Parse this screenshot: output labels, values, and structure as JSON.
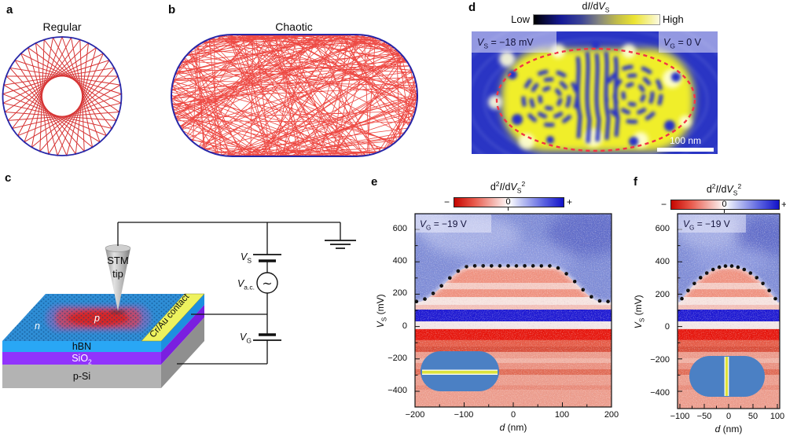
{
  "panels": {
    "a": {
      "label": "a",
      "title": "Regular"
    },
    "b": {
      "label": "b",
      "title": "Chaotic"
    },
    "c": {
      "label": "c",
      "stm1": "STM",
      "stm2": "tip",
      "n": "n",
      "p": "p",
      "hbn": "hBN",
      "sio2": {
        "pre": "SiO",
        "sub": "2"
      },
      "psi": "p-Si",
      "contact": "Cr/Au contact",
      "vs": {
        "pre": "V",
        "sub": "S"
      },
      "vac": {
        "pre": "V",
        "sub": "a.c."
      },
      "vg": {
        "pre": "V",
        "sub": "G"
      },
      "ac_symbol": "∼"
    },
    "d": {
      "label": "d",
      "title": {
        "p1": "d",
        "p2": "I",
        "p3": "/d",
        "p4": "V",
        "sub": "S"
      },
      "low": "Low",
      "high": "High",
      "ann_left": {
        "pre": "V",
        "sub": "S",
        "post": " = −18 mV"
      },
      "ann_right": {
        "pre": "V",
        "sub": "G",
        "post": " = 0 V"
      },
      "scalebar": "100 nm"
    },
    "e": {
      "label": "e",
      "title": {
        "p1": "d",
        "sup1": "2",
        "p2": "I",
        "p3": "/d",
        "p4": "V",
        "sub": "S",
        "sup2": "2"
      },
      "cb": {
        "minus": "−",
        "zero": "0",
        "plus": "+"
      },
      "ann": {
        "pre": "V",
        "sub": "G",
        "post": " = −19 V"
      },
      "yticks": [
        "600",
        "400",
        "200",
        "0",
        "−200",
        "−400"
      ],
      "xticks": [
        "−200",
        "−100",
        "0",
        "100",
        "200"
      ],
      "ylabel": {
        "pre": "V",
        "sub": "S",
        "post": " (mV)"
      },
      "xlabel": {
        "pre": "d",
        "post": " (nm)"
      }
    },
    "f": {
      "label": "f",
      "title": {
        "p1": "d",
        "sup1": "2",
        "p2": "I",
        "p3": "/d",
        "p4": "V",
        "sub": "S",
        "sup2": "2"
      },
      "cb": {
        "minus": "−",
        "zero": "0",
        "plus": "+"
      },
      "ann": {
        "pre": "V",
        "sub": "G",
        "post": " = −19 V"
      },
      "yticks": [
        "600",
        "400",
        "200",
        "0",
        "−200",
        "−400"
      ],
      "xticks": [
        "−100",
        "−50",
        "0",
        "50",
        "100"
      ],
      "ylabel": {
        "pre": "V",
        "sub": "S",
        "post": " (mV)"
      },
      "xlabel": {
        "pre": "d",
        "post": " (nm)"
      }
    }
  },
  "chart_data": [
    {
      "panel": "a",
      "type": "diagram",
      "title": "Regular",
      "description": "Circular billiard (blue outline) filled with regular star-polygon orbit of red chords leaving an empty central caustic disc",
      "geometry": {
        "n_bounces": 41,
        "skip": 16
      }
    },
    {
      "panel": "b",
      "type": "diagram",
      "title": "Chaotic",
      "description": "Stadium billiard (blue outline) densely filled with chaotic red trajectory segments"
    },
    {
      "panel": "d",
      "type": "heatmap",
      "signal": "dI/dVS",
      "colorbar_labels": [
        "Low",
        "High"
      ],
      "annotations": [
        "VS = −18 mV",
        "VG = 0 V"
      ],
      "scalebar": "100 nm",
      "description": "Stadium-shaped high-conductance (yellow) region on blue background with interference fringes: two concentric ring sets and central vertical stripes; red dashed stadium outline"
    },
    {
      "panel": "e",
      "type": "heatmap",
      "x": {
        "label": "d (nm)",
        "ticks": [
          -200,
          -100,
          0,
          100,
          200
        ],
        "range": [
          -200,
          200
        ]
      },
      "y": {
        "label": "VS (mV)",
        "ticks": [
          600,
          400,
          200,
          0,
          -200,
          -400
        ],
        "range": [
          -497,
          707
        ]
      },
      "colorbar": {
        "title": "d2I/dVS2",
        "labels": [
          "−",
          "0",
          "+"
        ]
      },
      "annotation": "VG = −19 V",
      "dome": {
        "shape": "flat-top",
        "edge_mV": 150,
        "plateau_mV": 370,
        "plateau_d_nm": [
          -85,
          75
        ]
      },
      "base_color": "#f2beb4",
      "top_color": "#7e8cd6",
      "bands": [
        [
          355,
          270,
          "#ef9280"
        ],
        [
          270,
          230,
          "#f4cac2"
        ],
        [
          230,
          182,
          "#ef9280"
        ],
        [
          182,
          134,
          "#f6e2de"
        ],
        [
          134,
          105,
          "#f2c0b8"
        ],
        [
          105,
          32,
          "#1d18d2"
        ],
        [
          32,
          -16,
          "#f2e6e8"
        ],
        [
          -16,
          -84,
          "#e6150c"
        ],
        [
          -84,
          -123,
          "#e55a45"
        ],
        [
          -123,
          -157,
          "#d84c38"
        ],
        [
          -157,
          -196,
          "#ec9a8a"
        ],
        [
          -196,
          -225,
          "#f0b0a2"
        ],
        [
          -225,
          -264,
          "#ea8f7e"
        ],
        [
          -264,
          -298,
          "#e06a54"
        ],
        [
          -298,
          -362,
          "#ec9c8c"
        ],
        [
          -362,
          -391,
          "#e88a78"
        ],
        [
          -391,
          -510,
          "#ec9c8c"
        ]
      ],
      "inset": "stadium cut by horizontal line"
    },
    {
      "panel": "f",
      "type": "heatmap",
      "x": {
        "label": "d (nm)",
        "ticks": [
          -100,
          -50,
          0,
          50,
          100
        ],
        "range": [
          -105,
          105
        ]
      },
      "y": {
        "label": "VS (mV)",
        "ticks": [
          600,
          400,
          200,
          0,
          -200,
          -400
        ],
        "range": [
          -507,
          707
        ]
      },
      "colorbar": {
        "title": "d2I/dVS2",
        "labels": [
          "−",
          "0",
          "+"
        ]
      },
      "annotation": "VG = −19 V",
      "dome": {
        "shape": "parabola",
        "peak_mV": 370,
        "edge_mV": 150,
        "edge_d_nm": 100
      },
      "inset": "stadium cut by vertical line"
    }
  ]
}
